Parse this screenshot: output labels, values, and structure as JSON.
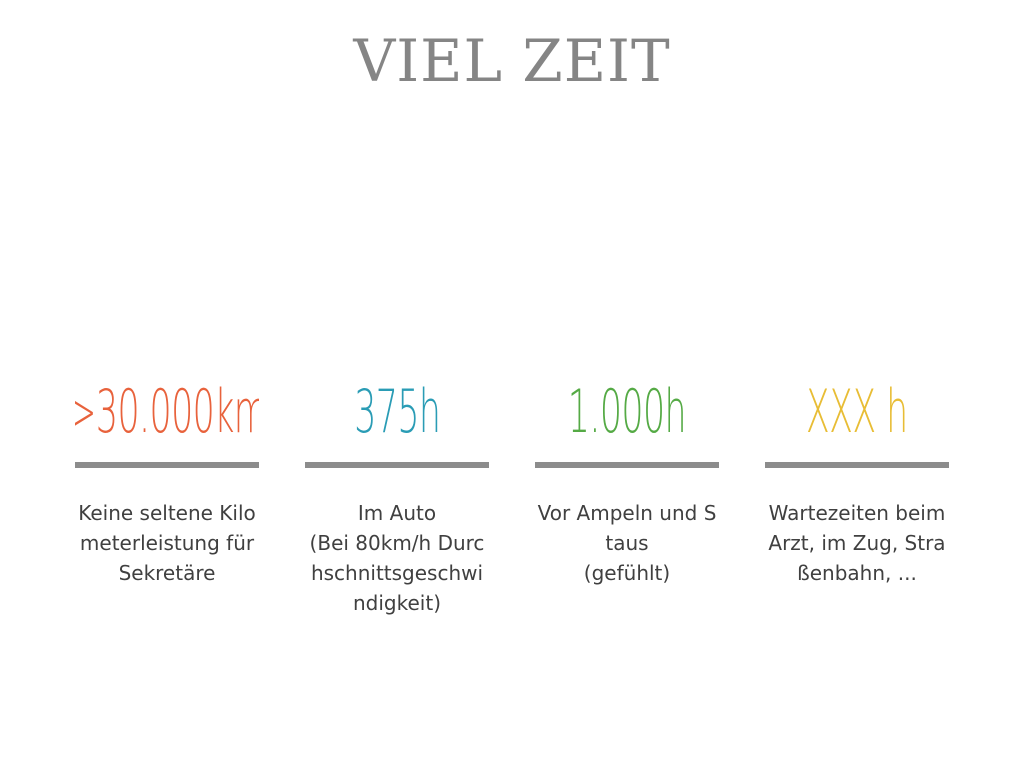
{
  "slide": {
    "title": "VIEL ZEIT"
  },
  "stats": [
    {
      "value": ">30.000km",
      "color": "#e8623c",
      "description": [
        "Keine seltene Kilometerleistung für Sekretäre"
      ]
    },
    {
      "value": "375h",
      "color": "#2a9cb5",
      "description": [
        "Im Auto",
        "(Bei 80km/h Durchschnittsgeschwindigkeit)"
      ]
    },
    {
      "value": "1.000h",
      "color": "#55aa45",
      "description": [
        "Vor Ampeln und Staus",
        "(gefühlt)"
      ]
    },
    {
      "value": "XXX h",
      "color": "#e8bd35",
      "description": [
        "Wartezeiten beim Arzt, im Zug, Straßenbahn, ..."
      ]
    }
  ]
}
